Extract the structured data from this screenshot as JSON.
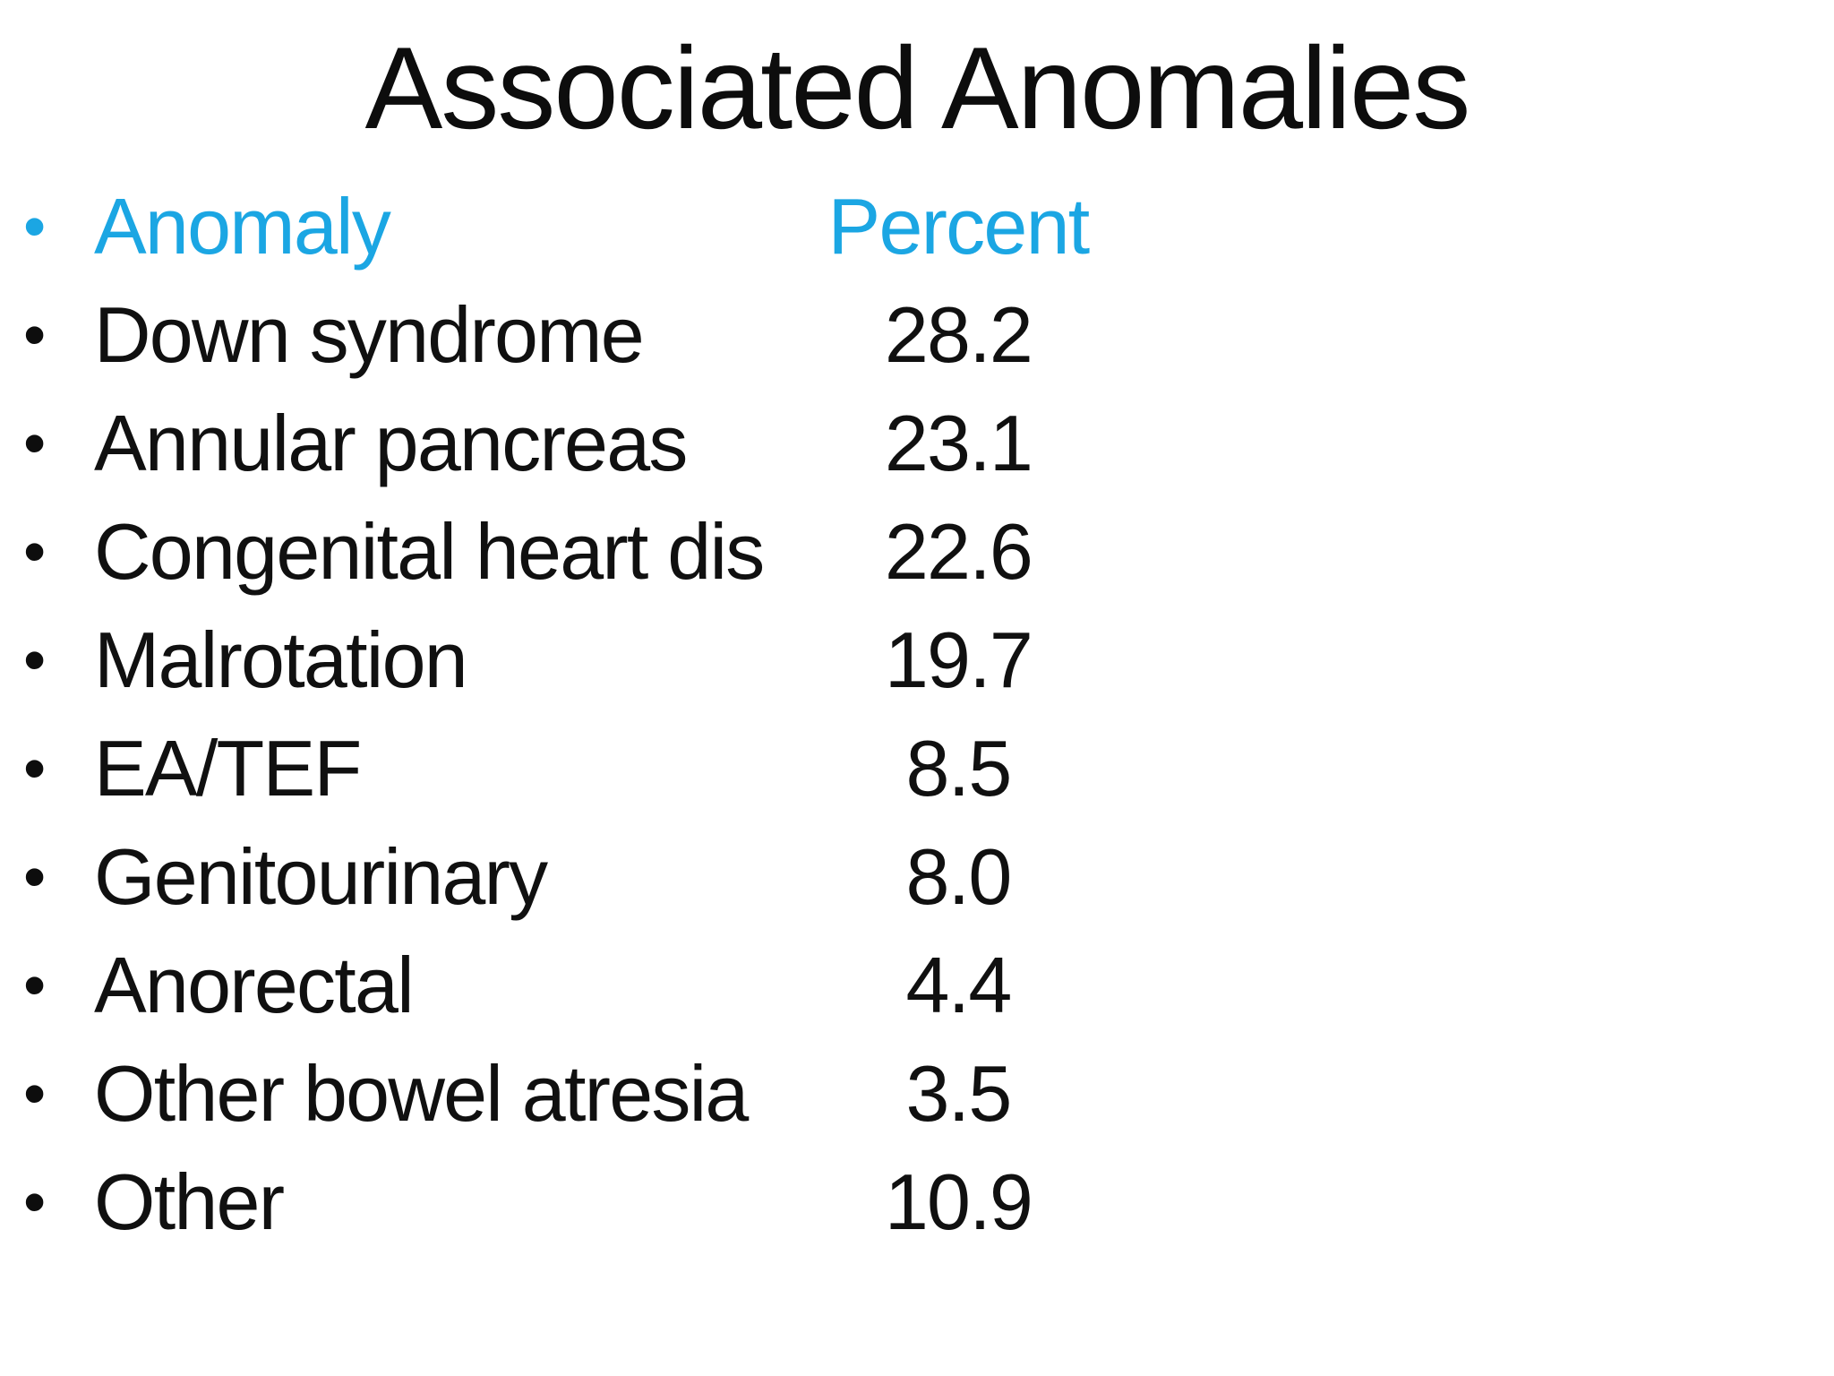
{
  "slide": {
    "title": "Associated Anomalies",
    "bullet_char": "•",
    "colors": {
      "accent": "#1ba6e3",
      "text": "#101010",
      "background": "#ffffff"
    },
    "header": {
      "label": "Anomaly",
      "value": "Percent"
    },
    "rows": [
      {
        "label": "Down syndrome",
        "value": "28.2"
      },
      {
        "label": "Annular pancreas",
        "value": "23.1"
      },
      {
        "label": "Congenital heart dis",
        "value": "22.6"
      },
      {
        "label": "Malrotation",
        "value": "19.7"
      },
      {
        "label": "EA/TEF",
        "value": "8.5"
      },
      {
        "label": "Genitourinary",
        "value": "8.0"
      },
      {
        "label": "Anorectal",
        "value": "4.4"
      },
      {
        "label": "Other bowel atresia",
        "value": "3.5"
      },
      {
        "label": "Other",
        "value": "10.9"
      }
    ]
  }
}
